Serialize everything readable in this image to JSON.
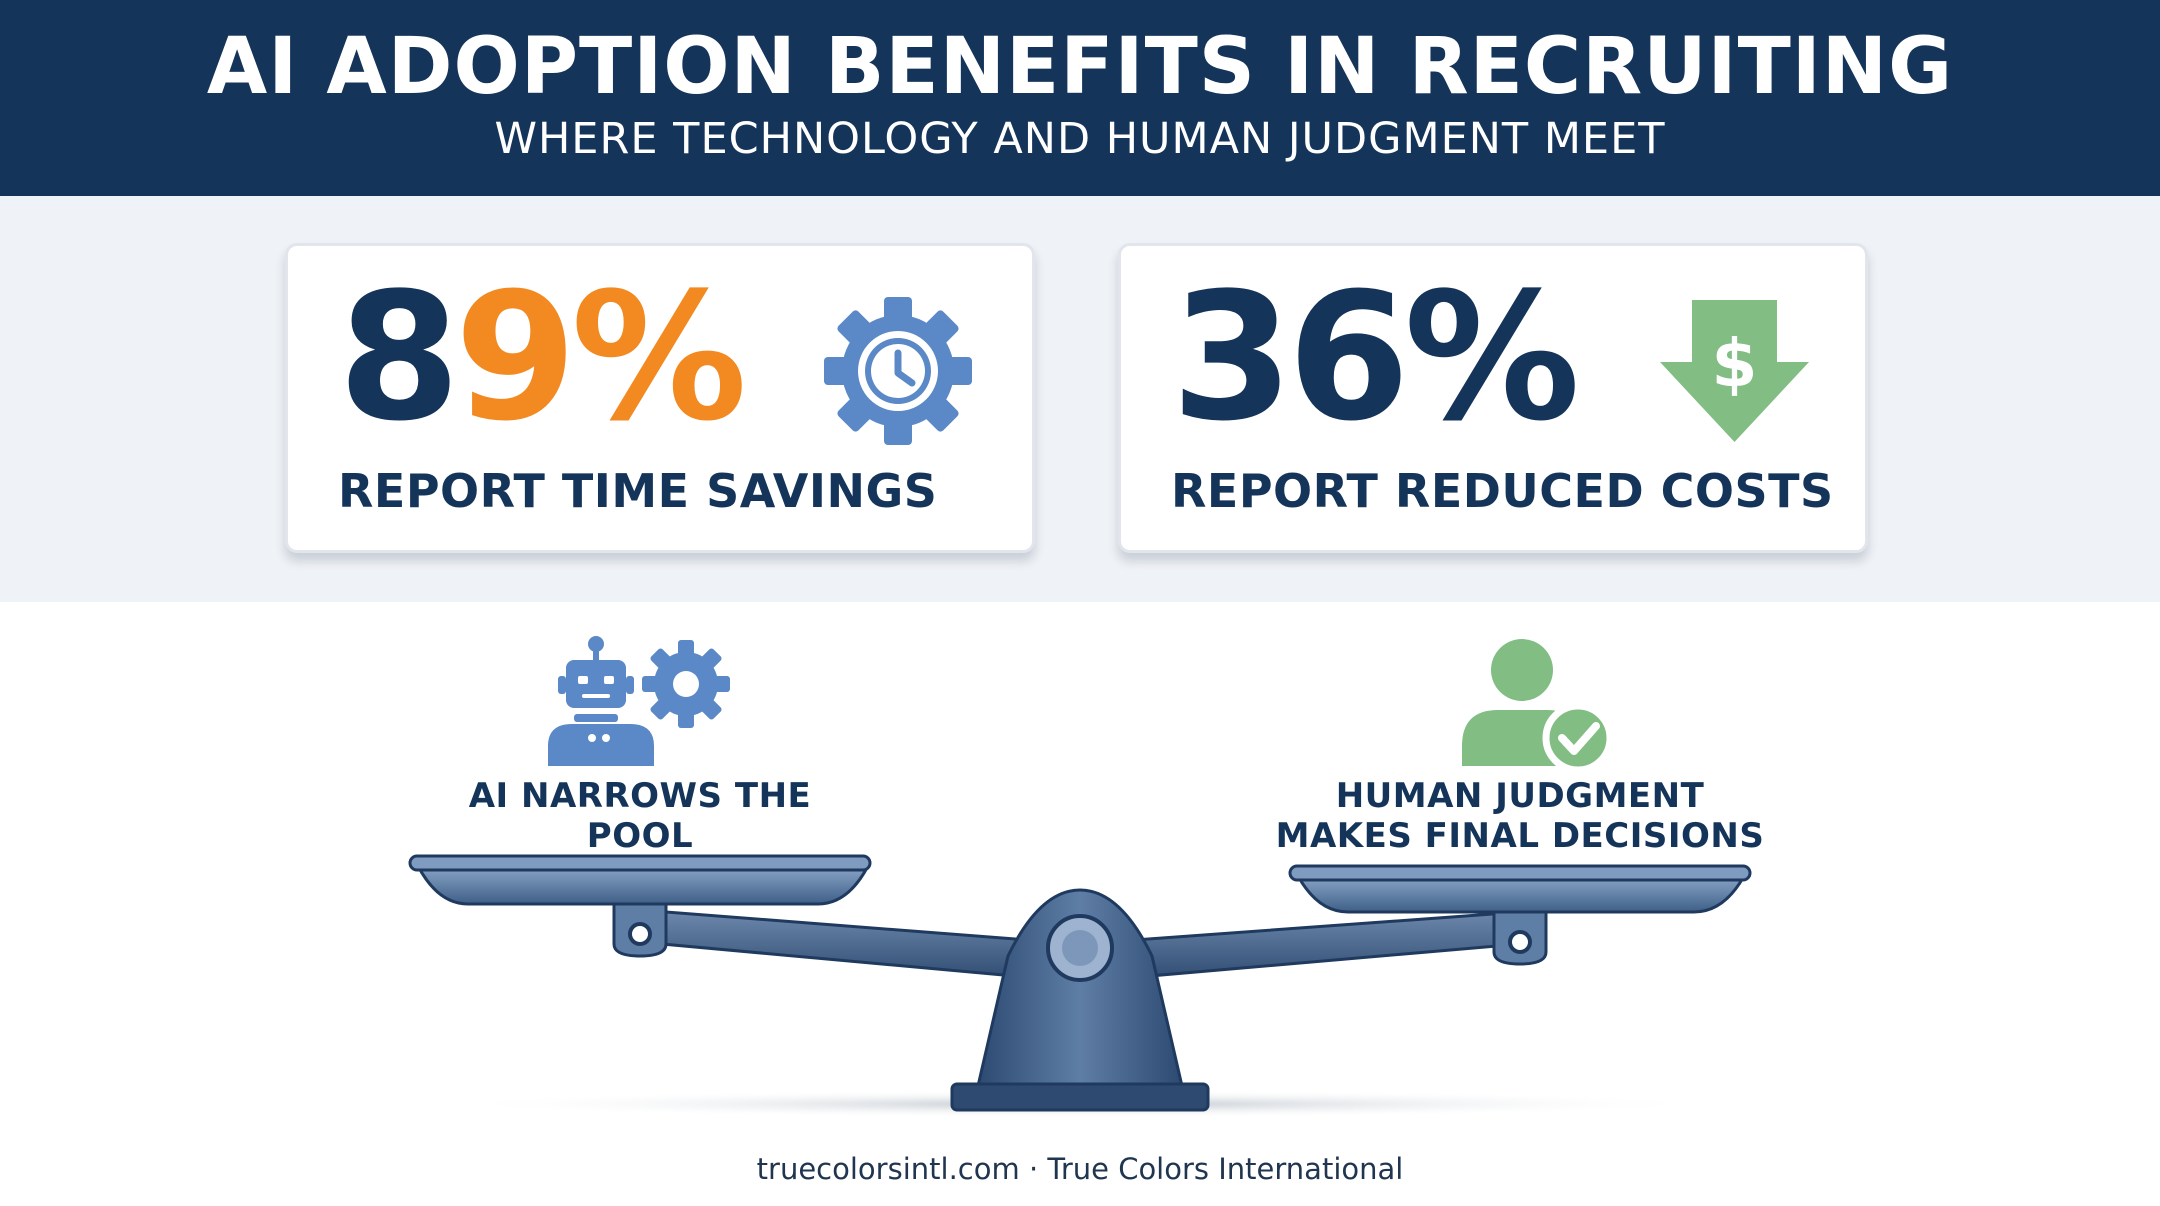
{
  "header": {
    "title": "AI ADOPTION BENEFITS IN RECRUITING",
    "subtitle": "WHERE TECHNOLOGY AND HUMAN JUDGMENT MEET"
  },
  "stats": {
    "time": {
      "value_part1": "8",
      "value_part2": "9%",
      "label": "REPORT TIME SAVINGS",
      "icon": "gear-clock-icon"
    },
    "cost": {
      "value": "36%",
      "label": "REPORT REDUCED COSTS",
      "icon": "dollar-down-arrow-icon"
    }
  },
  "scale": {
    "left_label_line1": "AI NARROWS THE",
    "left_label_line2": "POOL",
    "right_label_line1": "HUMAN JUDGMENT",
    "right_label_line2": "MAKES FINAL DECISIONS",
    "left_icon": "robot-gear-icon",
    "right_icon": "person-check-icon"
  },
  "footer": {
    "text": "truecolorsintl.com · True Colors International"
  },
  "colors": {
    "navy": "#15345a",
    "orange": "#f28a21",
    "blue_icon": "#5b88c6",
    "green_icon": "#82bd84",
    "band_bg": "#eff2f6"
  }
}
